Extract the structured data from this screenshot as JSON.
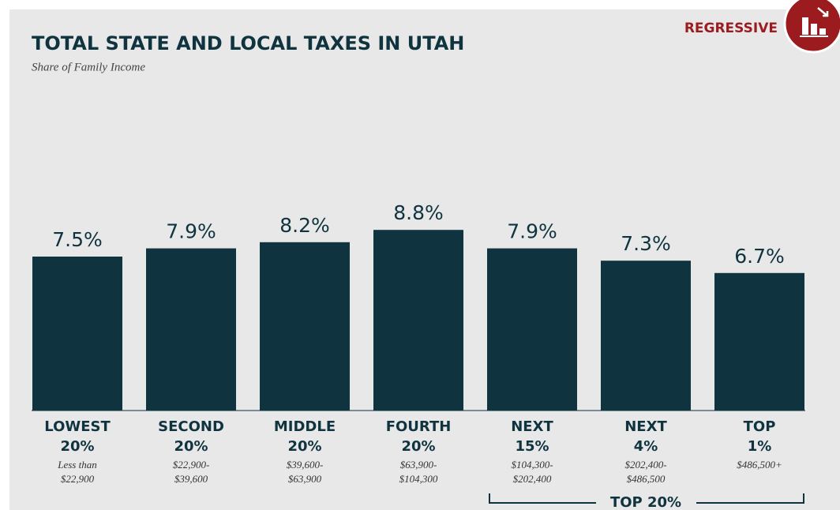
{
  "chart_data": {
    "type": "bar",
    "title": "TOTAL STATE AND LOCAL TAXES IN UTAH",
    "subtitle": "Share of Family Income",
    "badge": "REGRESSIVE",
    "categories": [
      "LOWEST",
      "SECOND",
      "MIDDLE",
      "FOURTH",
      "NEXT",
      "NEXT",
      "TOP"
    ],
    "category_shares": [
      "20%",
      "20%",
      "20%",
      "20%",
      "15%",
      "4%",
      "1%"
    ],
    "income_ranges": [
      [
        "Less than",
        "$22,900"
      ],
      [
        "$22,900-",
        "$39,600"
      ],
      [
        "$39,600-",
        "$63,900"
      ],
      [
        "$63,900-",
        "$104,300"
      ],
      [
        "$104,300-",
        "$202,400"
      ],
      [
        "$202,400-",
        "$486,500"
      ],
      [
        "$486,500+"
      ]
    ],
    "values": [
      7.5,
      7.9,
      8.2,
      8.8,
      7.9,
      7.3,
      6.7
    ],
    "value_labels": [
      "7.5%",
      "7.9%",
      "8.2%",
      "8.8%",
      "7.9%",
      "7.3%",
      "6.7%"
    ],
    "color": "#10343f",
    "group_annotation": "TOP 20%"
  }
}
